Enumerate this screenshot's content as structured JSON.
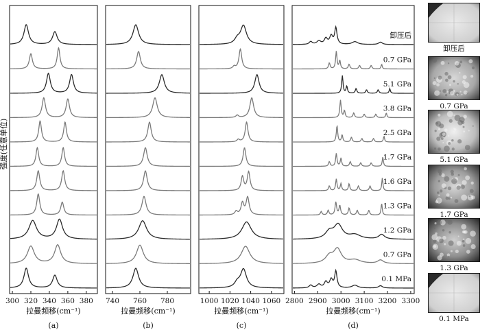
{
  "figure": {
    "y_axis_label": "强度(任意单位)",
    "micrograph_labels": [
      "卸压后",
      "0.7 GPa",
      "5.1 GPa",
      "1.7 GPa",
      "1.3 GPa",
      "0.1 MPa"
    ]
  },
  "chart_data": [
    {
      "type": "line",
      "panel": "(a)",
      "xlabel": "拉曼频移(cm⁻¹)",
      "xlim": [
        297,
        392
      ],
      "xticks": [
        300,
        320,
        340,
        360,
        380
      ],
      "y_scale": "offset stacked, arbitrary units",
      "series": [
        {
          "name": "0.1 MPa",
          "peaks": [
            {
              "x": 315,
              "h": 0.85,
              "w": 3.0
            },
            {
              "x": 346,
              "h": 0.55,
              "w": 3.0
            }
          ]
        },
        {
          "name": "0.7 GPa",
          "peaks": [
            {
              "x": 320,
              "h": 0.75,
              "w": 4.5
            },
            {
              "x": 349,
              "h": 0.8,
              "w": 4.0
            }
          ]
        },
        {
          "name": "1.2 GPa",
          "peaks": [
            {
              "x": 322,
              "h": 0.8,
              "w": 5.0
            },
            {
              "x": 351,
              "h": 0.85,
              "w": 4.0
            }
          ]
        },
        {
          "name": "1.3 GPa",
          "peaks": [
            {
              "x": 328,
              "h": 0.9,
              "w": 2.0
            },
            {
              "x": 354,
              "h": 0.55,
              "w": 2.0
            }
          ]
        },
        {
          "name": "1.6 GPa",
          "peaks": [
            {
              "x": 328,
              "h": 0.85,
              "w": 2.0
            },
            {
              "x": 355,
              "h": 0.85,
              "w": 2.0
            }
          ]
        },
        {
          "name": "1.7 GPa",
          "peaks": [
            {
              "x": 327,
              "h": 0.8,
              "w": 1.8
            },
            {
              "x": 355,
              "h": 0.8,
              "w": 1.8
            }
          ]
        },
        {
          "name": "2.5 GPa",
          "peaks": [
            {
              "x": 330,
              "h": 0.9,
              "w": 1.8
            },
            {
              "x": 357,
              "h": 0.85,
              "w": 1.8
            }
          ]
        },
        {
          "name": "3.8 GPa",
          "peaks": [
            {
              "x": 334,
              "h": 0.85,
              "w": 2.2
            },
            {
              "x": 360,
              "h": 0.8,
              "w": 2.2
            }
          ]
        },
        {
          "name": "5.1 GPa",
          "peaks": [
            {
              "x": 339,
              "h": 0.85,
              "w": 2.5
            },
            {
              "x": 364,
              "h": 0.8,
              "w": 2.5
            }
          ]
        },
        {
          "name": "0.7 GPa",
          "peaks": [
            {
              "x": 320,
              "h": 0.65,
              "w": 2.0
            },
            {
              "x": 350,
              "h": 0.9,
              "w": 1.8
            }
          ]
        },
        {
          "name": "卸压后",
          "peaks": [
            {
              "x": 315,
              "h": 0.85,
              "w": 3.0
            },
            {
              "x": 346,
              "h": 0.55,
              "w": 3.0
            }
          ]
        }
      ]
    },
    {
      "type": "line",
      "panel": "(b)",
      "xlabel": "拉曼频移(cm⁻¹)",
      "xlim": [
        735,
        797
      ],
      "xticks": [
        740,
        760,
        780
      ],
      "y_scale": "offset stacked, arbitrary units",
      "series": [
        {
          "name": "0.1 MPa",
          "peaks": [
            {
              "x": 757,
              "h": 0.85,
              "w": 2.5
            }
          ]
        },
        {
          "name": "0.7 GPa",
          "peaks": [
            {
              "x": 760,
              "h": 0.8,
              "w": 3.0
            }
          ]
        },
        {
          "name": "1.2 GPa",
          "peaks": [
            {
              "x": 762,
              "h": 0.8,
              "w": 3.5
            }
          ]
        },
        {
          "name": "1.3 GPa",
          "peaks": [
            {
              "x": 763,
              "h": 0.8,
              "w": 1.8
            }
          ]
        },
        {
          "name": "1.6 GPa",
          "peaks": [
            {
              "x": 764,
              "h": 0.85,
              "w": 1.6
            }
          ]
        },
        {
          "name": "1.7 GPa",
          "peaks": [
            {
              "x": 764,
              "h": 0.8,
              "w": 1.6
            }
          ]
        },
        {
          "name": "2.5 GPa",
          "peaks": [
            {
              "x": 767,
              "h": 0.85,
              "w": 1.5
            }
          ]
        },
        {
          "name": "3.8 GPa",
          "peaks": [
            {
              "x": 771,
              "h": 0.85,
              "w": 2.0
            }
          ]
        },
        {
          "name": "5.1 GPa",
          "peaks": [
            {
              "x": 776,
              "h": 0.8,
              "w": 2.2
            }
          ]
        },
        {
          "name": "0.7 GPa",
          "peaks": [
            {
              "x": 759,
              "h": 0.75,
              "w": 1.6
            }
          ]
        },
        {
          "name": "卸压后",
          "peaks": [
            {
              "x": 757,
              "h": 0.85,
              "w": 2.5
            }
          ]
        }
      ]
    },
    {
      "type": "line",
      "panel": "(c)",
      "xlabel": "拉曼频移(cm⁻¹)",
      "xlim": [
        990,
        1072
      ],
      "xticks": [
        1000,
        1020,
        1040,
        1060
      ],
      "y_scale": "offset stacked, arbitrary units",
      "series": [
        {
          "name": "0.1 MPa",
          "peaks": [
            {
              "x": 1033,
              "h": 0.8,
              "w": 3.5
            },
            {
              "x": 1027,
              "h": 0.2,
              "w": 3.0
            }
          ]
        },
        {
          "name": "0.7 GPa",
          "peaks": [
            {
              "x": 1035,
              "h": 0.75,
              "w": 5.0
            }
          ]
        },
        {
          "name": "1.2 GPa",
          "peaks": [
            {
              "x": 1036,
              "h": 0.75,
              "w": 5.5
            }
          ]
        },
        {
          "name": "1.3 GPa",
          "peaks": [
            {
              "x": 1032,
              "h": 0.5,
              "w": 1.6
            },
            {
              "x": 1037,
              "h": 0.75,
              "w": 1.8
            },
            {
              "x": 1026,
              "h": 0.15,
              "w": 1.5
            }
          ]
        },
        {
          "name": "1.6 GPa",
          "peaks": [
            {
              "x": 1032,
              "h": 0.6,
              "w": 1.5
            },
            {
              "x": 1038,
              "h": 0.8,
              "w": 1.6
            }
          ]
        },
        {
          "name": "1.7 GPa",
          "peaks": [
            {
              "x": 1034,
              "h": 0.8,
              "w": 1.6
            }
          ]
        },
        {
          "name": "2.5 GPa",
          "peaks": [
            {
              "x": 1036,
              "h": 0.85,
              "w": 1.6
            },
            {
              "x": 1028,
              "h": 0.1,
              "w": 1.5
            }
          ]
        },
        {
          "name": "3.8 GPa",
          "peaks": [
            {
              "x": 1041,
              "h": 0.85,
              "w": 2.2
            },
            {
              "x": 1027,
              "h": 0.1,
              "w": 1.5
            }
          ]
        },
        {
          "name": "5.1 GPa",
          "peaks": [
            {
              "x": 1046,
              "h": 0.8,
              "w": 2.5
            }
          ]
        },
        {
          "name": "0.7 GPa",
          "peaks": [
            {
              "x": 1030,
              "h": 0.85,
              "w": 1.6
            },
            {
              "x": 1024,
              "h": 0.1,
              "w": 1.5
            }
          ]
        },
        {
          "name": "卸压后",
          "peaks": [
            {
              "x": 1033,
              "h": 0.8,
              "w": 3.5
            },
            {
              "x": 1027,
              "h": 0.2,
              "w": 3.0
            }
          ]
        }
      ]
    },
    {
      "type": "line",
      "panel": "(d)",
      "xlabel": "拉曼频移(cm⁻¹)",
      "xlim": [
        2790,
        3315
      ],
      "xticks": [
        2800,
        2900,
        3000,
        3100,
        3200,
        3300
      ],
      "y_scale": "offset stacked, arbitrary units",
      "series": [
        {
          "name": "0.1 MPa",
          "label": "0.1 MPa",
          "peaks": [
            {
              "x": 2978,
              "h": 0.7,
              "w": 6
            },
            {
              "x": 2958,
              "h": 0.35,
              "w": 8
            },
            {
              "x": 2935,
              "h": 0.25,
              "w": 8
            },
            {
              "x": 2905,
              "h": 0.15,
              "w": 10
            },
            {
              "x": 2870,
              "h": 0.12,
              "w": 8
            },
            {
              "x": 3060,
              "h": 0.12,
              "w": 15
            },
            {
              "x": 3170,
              "h": 0.1,
              "w": 10
            }
          ]
        },
        {
          "name": "0.7 GPa",
          "label": "0.7 GPa",
          "peaks": [
            {
              "x": 2985,
              "h": 0.6,
              "w": 20
            },
            {
              "x": 2950,
              "h": 0.3,
              "w": 20
            },
            {
              "x": 3060,
              "h": 0.15,
              "w": 30
            },
            {
              "x": 3170,
              "h": 0.15,
              "w": 15
            }
          ]
        },
        {
          "name": "1.2 GPa",
          "label": "1.2 GPa",
          "peaks": [
            {
              "x": 2988,
              "h": 0.6,
              "w": 22
            },
            {
              "x": 2950,
              "h": 0.3,
              "w": 20
            },
            {
              "x": 3060,
              "h": 0.18,
              "w": 30
            },
            {
              "x": 3175,
              "h": 0.2,
              "w": 15
            }
          ]
        },
        {
          "name": "1.3 GPa",
          "label": "1.3 GPa",
          "peaks": [
            {
              "x": 2978,
              "h": 0.55,
              "w": 4
            },
            {
              "x": 2995,
              "h": 0.4,
              "w": 4
            },
            {
              "x": 3035,
              "h": 0.3,
              "w": 4
            },
            {
              "x": 3070,
              "h": 0.2,
              "w": 4
            },
            {
              "x": 3120,
              "h": 0.2,
              "w": 4
            },
            {
              "x": 3175,
              "h": 0.5,
              "w": 3
            },
            {
              "x": 2945,
              "h": 0.2,
              "w": 4
            },
            {
              "x": 2915,
              "h": 0.15,
              "w": 4
            }
          ]
        },
        {
          "name": "1.6 GPa",
          "label": "1.6 GPa",
          "peaks": [
            {
              "x": 2980,
              "h": 0.5,
              "w": 3.5
            },
            {
              "x": 3000,
              "h": 0.3,
              "w": 3.5
            },
            {
              "x": 3035,
              "h": 0.3,
              "w": 3.5
            },
            {
              "x": 3075,
              "h": 0.2,
              "w": 4
            },
            {
              "x": 3125,
              "h": 0.2,
              "w": 4
            },
            {
              "x": 3178,
              "h": 0.55,
              "w": 3
            },
            {
              "x": 2950,
              "h": 0.2,
              "w": 4
            }
          ]
        },
        {
          "name": "1.7 GPa",
          "label": "1.7 GPa",
          "peaks": [
            {
              "x": 2980,
              "h": 0.55,
              "w": 3.5
            },
            {
              "x": 3000,
              "h": 0.35,
              "w": 3.5
            },
            {
              "x": 3040,
              "h": 0.2,
              "w": 4
            },
            {
              "x": 3085,
              "h": 0.15,
              "w": 4
            },
            {
              "x": 3130,
              "h": 0.15,
              "w": 4
            },
            {
              "x": 3180,
              "h": 0.4,
              "w": 3
            },
            {
              "x": 2950,
              "h": 0.2,
              "w": 4
            }
          ]
        },
        {
          "name": "2.5 GPa",
          "label": "2.5 GPa",
          "peaks": [
            {
              "x": 2983,
              "h": 0.7,
              "w": 3.5
            },
            {
              "x": 3005,
              "h": 0.3,
              "w": 3.5
            },
            {
              "x": 3045,
              "h": 0.2,
              "w": 4
            },
            {
              "x": 3090,
              "h": 0.15,
              "w": 4
            },
            {
              "x": 3140,
              "h": 0.15,
              "w": 4
            },
            {
              "x": 3185,
              "h": 0.25,
              "w": 3
            }
          ]
        },
        {
          "name": "3.8 GPa",
          "label": "3.8 GPa",
          "peaks": [
            {
              "x": 2998,
              "h": 0.75,
              "w": 3.5
            },
            {
              "x": 3015,
              "h": 0.3,
              "w": 3.5
            },
            {
              "x": 3055,
              "h": 0.2,
              "w": 4
            },
            {
              "x": 3100,
              "h": 0.15,
              "w": 4
            },
            {
              "x": 3150,
              "h": 0.15,
              "w": 4
            },
            {
              "x": 3195,
              "h": 0.2,
              "w": 3
            }
          ]
        },
        {
          "name": "5.1 GPa",
          "label": "5.1 GPa",
          "peaks": [
            {
              "x": 3006,
              "h": 0.75,
              "w": 3.5
            },
            {
              "x": 3025,
              "h": 0.3,
              "w": 3.5
            },
            {
              "x": 3065,
              "h": 0.2,
              "w": 4
            },
            {
              "x": 3110,
              "h": 0.15,
              "w": 4
            },
            {
              "x": 3160,
              "h": 0.15,
              "w": 4
            },
            {
              "x": 3210,
              "h": 0.2,
              "w": 3
            }
          ]
        },
        {
          "name": "0.7 GPa",
          "label": "0.7 GPa",
          "peaks": [
            {
              "x": 2980,
              "h": 0.75,
              "w": 3.5
            },
            {
              "x": 2995,
              "h": 0.35,
              "w": 3.5
            },
            {
              "x": 3035,
              "h": 0.2,
              "w": 4
            },
            {
              "x": 3080,
              "h": 0.15,
              "w": 4
            },
            {
              "x": 3130,
              "h": 0.15,
              "w": 4
            },
            {
              "x": 3175,
              "h": 0.2,
              "w": 3
            },
            {
              "x": 2950,
              "h": 0.25,
              "w": 4
            }
          ]
        },
        {
          "name": "卸压后",
          "label": "卸压后",
          "peaks": [
            {
              "x": 2978,
              "h": 0.7,
              "w": 6
            },
            {
              "x": 2958,
              "h": 0.35,
              "w": 8
            },
            {
              "x": 2935,
              "h": 0.25,
              "w": 8
            },
            {
              "x": 2905,
              "h": 0.15,
              "w": 10
            },
            {
              "x": 2870,
              "h": 0.12,
              "w": 8
            },
            {
              "x": 3060,
              "h": 0.12,
              "w": 15
            },
            {
              "x": 3170,
              "h": 0.1,
              "w": 10
            }
          ]
        }
      ]
    }
  ],
  "colors": {
    "curve": "#2a2a2a",
    "curve_light": "#7a7a7a",
    "frame": "#111111"
  }
}
